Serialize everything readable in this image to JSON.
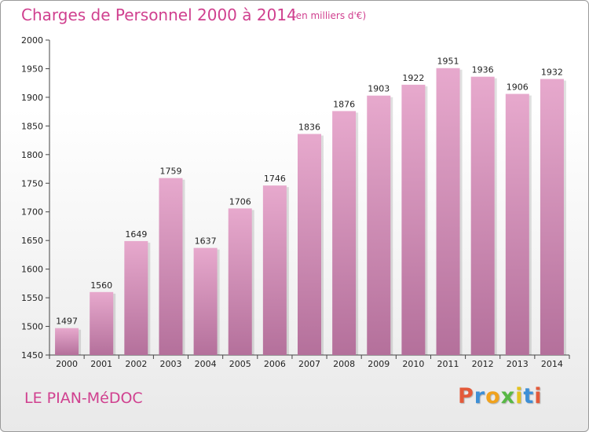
{
  "chart_data": {
    "type": "bar",
    "title": "Charges de Personnel 2000 à 2014",
    "subtitle": "(en milliers d'€)",
    "categories": [
      "2000",
      "2001",
      "2002",
      "2003",
      "2004",
      "2005",
      "2006",
      "2007",
      "2008",
      "2009",
      "2010",
      "2011",
      "2012",
      "2013",
      "2014"
    ],
    "values": [
      1497,
      1560,
      1649,
      1759,
      1637,
      1706,
      1746,
      1836,
      1876,
      1903,
      1922,
      1951,
      1936,
      1906,
      1932
    ],
    "xlabel": "",
    "ylabel": "",
    "ylim": [
      1450,
      2000
    ],
    "yticks": [
      1450,
      1500,
      1550,
      1600,
      1650,
      1700,
      1750,
      1800,
      1850,
      1900,
      1950,
      2000
    ],
    "grid": false,
    "bar_color": "#d786b4",
    "accent_color": "#d0408f"
  },
  "footer": {
    "commune": "LE PIAN-MéDOC",
    "logo_text": "Proxiti",
    "logo_colors": [
      "#e35a3a",
      "#3d8fd6",
      "#f0a21e",
      "#58b845",
      "#e3c21e",
      "#3d8fd6",
      "#e35a3a"
    ]
  }
}
